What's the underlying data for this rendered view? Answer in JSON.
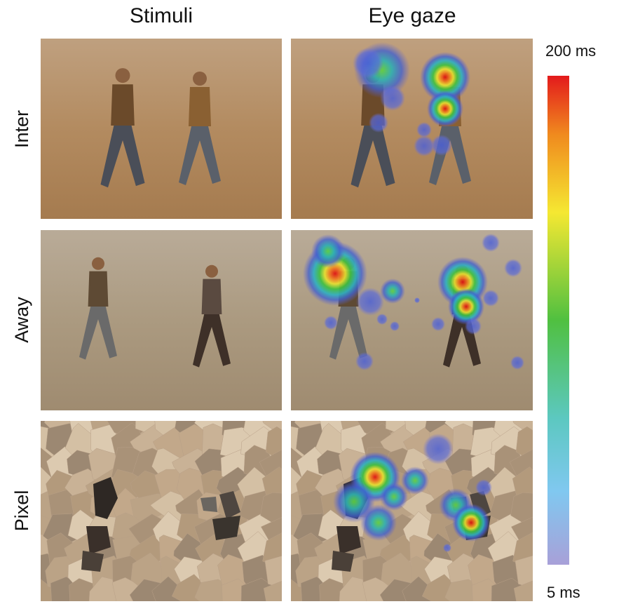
{
  "columns": [
    "Stimuli",
    "Eye gaze"
  ],
  "rows": [
    "Inter",
    "Away",
    "Pixel"
  ],
  "colorbar": {
    "max_label": "200 ms",
    "min_label": "5 ms"
  }
}
